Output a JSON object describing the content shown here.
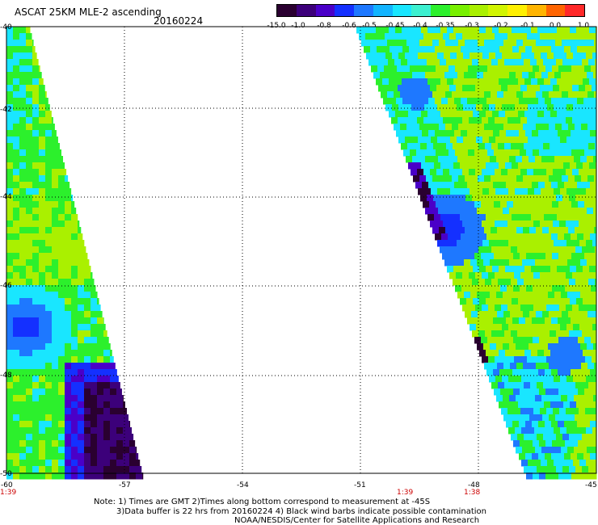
{
  "header": {
    "title": "ASCAT 25KM MLE-2 ascending",
    "date": "20160224"
  },
  "colorbar": {
    "colors": [
      "#2a0030",
      "#3c007a",
      "#4a00c8",
      "#1430ff",
      "#1e78ff",
      "#12b4ff",
      "#19e6ff",
      "#3cf0d0",
      "#2cf02c",
      "#78f000",
      "#aaf000",
      "#d2f500",
      "#fff000",
      "#ffb400",
      "#ff6400",
      "#ff2828"
    ],
    "labels": [
      "-15.0",
      "-1.0",
      "-0.8",
      "-0.6",
      "-0.5",
      "-0.45",
      "-0.4",
      "-0.35",
      "-0.3",
      "-0.2",
      "-0.1",
      "0.0",
      "1.0"
    ]
  },
  "axes": {
    "lon_labels": [
      "-60",
      "-57",
      "-54",
      "-51",
      "-48",
      "-45"
    ],
    "lat_labels": [
      "-40",
      "-42",
      "-44",
      "-46",
      "-48",
      "-50"
    ],
    "time_labels": [
      "1:39",
      "1:39",
      "1:38"
    ]
  },
  "notes": {
    "line1": "Note: 1) Times are GMT 2)Times along bottom correspond to measurement at -45S",
    "line2": "3)Data buffer is 22 hrs from 20160224 4) Black wind barbs indicate possible contamination",
    "line3": "NOAA/NESDIS/Center for Satellite Applications and Research"
  }
}
